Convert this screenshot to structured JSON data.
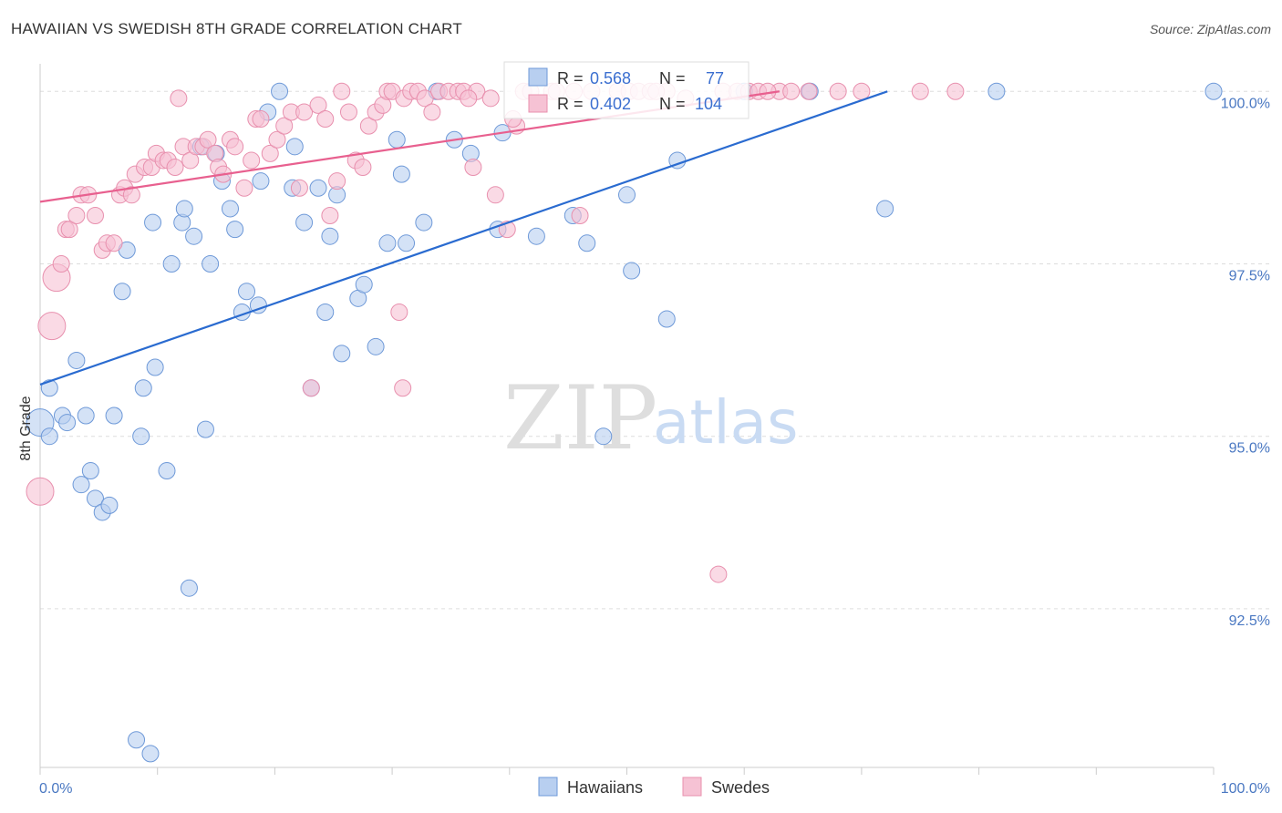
{
  "title": "HAWAIIAN VS SWEDISH 8TH GRADE CORRELATION CHART",
  "source": "Source: ZipAtlas.com",
  "watermark": {
    "left": "ZIP",
    "right": "atlas"
  },
  "colors": {
    "blue_fill": "#b8cff0",
    "blue_stroke": "#6e99d8",
    "blue_line": "#2a6bd0",
    "pink_fill": "#f6c2d4",
    "pink_stroke": "#e890ae",
    "pink_line": "#e8608f",
    "axis_text": "#4a78c2",
    "grid": "#dddddd"
  },
  "chart_data": {
    "type": "scatter",
    "xlabel": "",
    "ylabel": "8th Grade",
    "xlim": [
      0,
      100
    ],
    "ylim": [
      90.2,
      100.4
    ],
    "x_tick_labels": [
      "0.0%",
      "100.0%"
    ],
    "y_ticks": [
      92.5,
      95.0,
      97.5,
      100.0
    ],
    "y_tick_labels": [
      "92.5%",
      "95.0%",
      "97.5%",
      "100.0%"
    ],
    "grid": "dashed horizontal",
    "legend": {
      "placement": "top-center",
      "entries": [
        {
          "r_label": "R =",
          "r": "0.568",
          "n_label": "N =",
          "n": "77"
        },
        {
          "r_label": "R =",
          "r": "0.402",
          "n_label": "N =",
          "n": "104"
        }
      ]
    },
    "series": [
      {
        "name": "Hawaiians",
        "trend": {
          "x": [
            0,
            72.2
          ],
          "y": [
            95.75,
            100.0
          ]
        },
        "points": [
          [
            0.0,
            95.2,
            2
          ],
          [
            0.8,
            95.7,
            1
          ],
          [
            0.8,
            95.0,
            1
          ],
          [
            1.9,
            95.3,
            1
          ],
          [
            2.3,
            95.2,
            1
          ],
          [
            3.1,
            96.1,
            1
          ],
          [
            3.5,
            94.3,
            1
          ],
          [
            3.9,
            95.3,
            1
          ],
          [
            4.3,
            94.5,
            1
          ],
          [
            4.7,
            94.1,
            1
          ],
          [
            5.3,
            93.9,
            1
          ],
          [
            5.9,
            94.0,
            1
          ],
          [
            6.3,
            95.3,
            1
          ],
          [
            7.0,
            97.1,
            1
          ],
          [
            7.4,
            97.7,
            1
          ],
          [
            8.2,
            90.6,
            1
          ],
          [
            8.6,
            95.0,
            1
          ],
          [
            8.8,
            95.7,
            1
          ],
          [
            9.6,
            98.1,
            1
          ],
          [
            9.8,
            96.0,
            1
          ],
          [
            10.8,
            94.5,
            1
          ],
          [
            11.2,
            97.5,
            1
          ],
          [
            12.1,
            98.1,
            1
          ],
          [
            12.3,
            98.3,
            1
          ],
          [
            12.7,
            92.8,
            1
          ],
          [
            13.1,
            97.9,
            1
          ],
          [
            13.7,
            99.2,
            1
          ],
          [
            14.1,
            95.1,
            1
          ],
          [
            14.5,
            97.5,
            1
          ],
          [
            15.0,
            99.1,
            1
          ],
          [
            15.5,
            98.7,
            1
          ],
          [
            16.2,
            98.3,
            1
          ],
          [
            16.6,
            98.0,
            1
          ],
          [
            17.2,
            96.8,
            1
          ],
          [
            17.6,
            97.1,
            1
          ],
          [
            18.6,
            96.9,
            1
          ],
          [
            18.8,
            98.7,
            1
          ],
          [
            19.4,
            99.7,
            1
          ],
          [
            20.4,
            100.0,
            1
          ],
          [
            21.5,
            98.6,
            1
          ],
          [
            21.7,
            99.2,
            1
          ],
          [
            22.5,
            98.1,
            1
          ],
          [
            23.1,
            95.7,
            1
          ],
          [
            23.7,
            98.6,
            1
          ],
          [
            24.3,
            96.8,
            1
          ],
          [
            24.7,
            97.9,
            1
          ],
          [
            25.3,
            98.5,
            1
          ],
          [
            25.7,
            96.2,
            1
          ],
          [
            27.1,
            97.0,
            1
          ],
          [
            27.6,
            97.2,
            1
          ],
          [
            28.6,
            96.3,
            1
          ],
          [
            29.6,
            97.8,
            1
          ],
          [
            30.4,
            99.3,
            1
          ],
          [
            30.8,
            98.8,
            1
          ],
          [
            31.2,
            97.8,
            1
          ],
          [
            32.7,
            98.1,
            1
          ],
          [
            33.8,
            100.0,
            1
          ],
          [
            35.3,
            99.3,
            1
          ],
          [
            36.7,
            99.1,
            1
          ],
          [
            39.0,
            98.0,
            1
          ],
          [
            39.4,
            99.4,
            1
          ],
          [
            42.3,
            97.9,
            1
          ],
          [
            45.4,
            98.2,
            1
          ],
          [
            46.6,
            97.8,
            1
          ],
          [
            48.0,
            95.0,
            1
          ],
          [
            50.0,
            98.5,
            1
          ],
          [
            50.4,
            97.4,
            1
          ],
          [
            53.4,
            96.7,
            1
          ],
          [
            54.3,
            99.0,
            1
          ],
          [
            60.0,
            100.0,
            1
          ],
          [
            65.6,
            100.0,
            1
          ],
          [
            72.0,
            98.3,
            1
          ],
          [
            81.5,
            100.0,
            1
          ],
          [
            100.0,
            100.0,
            1
          ],
          [
            9.4,
            90.4,
            1
          ]
        ]
      },
      {
        "name": "Swedes",
        "trend": {
          "x": [
            0,
            63.0
          ],
          "y": [
            98.4,
            100.0
          ]
        },
        "points": [
          [
            0.0,
            94.2,
            2
          ],
          [
            1.0,
            96.6,
            2
          ],
          [
            1.4,
            97.3,
            2
          ],
          [
            1.8,
            97.5,
            1
          ],
          [
            2.2,
            98.0,
            1
          ],
          [
            2.5,
            98.0,
            1
          ],
          [
            3.1,
            98.2,
            1
          ],
          [
            3.5,
            98.5,
            1
          ],
          [
            4.1,
            98.5,
            1
          ],
          [
            4.7,
            98.2,
            1
          ],
          [
            5.3,
            97.7,
            1
          ],
          [
            5.7,
            97.8,
            1
          ],
          [
            6.3,
            97.8,
            1
          ],
          [
            6.8,
            98.5,
            1
          ],
          [
            7.2,
            98.6,
            1
          ],
          [
            7.8,
            98.5,
            1
          ],
          [
            8.1,
            98.8,
            1
          ],
          [
            8.9,
            98.9,
            1
          ],
          [
            9.5,
            98.9,
            1
          ],
          [
            9.9,
            99.1,
            1
          ],
          [
            10.5,
            99.0,
            1
          ],
          [
            10.9,
            99.0,
            1
          ],
          [
            11.5,
            98.9,
            1
          ],
          [
            12.2,
            99.2,
            1
          ],
          [
            12.8,
            99.0,
            1
          ],
          [
            13.3,
            99.2,
            1
          ],
          [
            13.9,
            99.2,
            1
          ],
          [
            14.3,
            99.3,
            1
          ],
          [
            14.9,
            99.1,
            1
          ],
          [
            15.2,
            98.9,
            1
          ],
          [
            15.6,
            98.8,
            1
          ],
          [
            16.2,
            99.3,
            1
          ],
          [
            16.6,
            99.2,
            1
          ],
          [
            17.4,
            98.6,
            1
          ],
          [
            18.0,
            99.0,
            1
          ],
          [
            18.4,
            99.6,
            1
          ],
          [
            18.8,
            99.6,
            1
          ],
          [
            19.6,
            99.1,
            1
          ],
          [
            20.2,
            99.3,
            1
          ],
          [
            20.8,
            99.5,
            1
          ],
          [
            21.4,
            99.7,
            1
          ],
          [
            22.1,
            98.6,
            1
          ],
          [
            22.5,
            99.7,
            1
          ],
          [
            23.1,
            95.7,
            1
          ],
          [
            23.7,
            99.8,
            1
          ],
          [
            24.3,
            99.6,
            1
          ],
          [
            24.7,
            98.2,
            1
          ],
          [
            25.3,
            98.7,
            1
          ],
          [
            25.7,
            100.0,
            1
          ],
          [
            26.3,
            99.7,
            1
          ],
          [
            26.9,
            99.0,
            1
          ],
          [
            27.5,
            98.9,
            1
          ],
          [
            28.0,
            99.5,
            1
          ],
          [
            28.6,
            99.7,
            1
          ],
          [
            29.2,
            99.8,
            1
          ],
          [
            29.6,
            100.0,
            1
          ],
          [
            30.0,
            100.0,
            1
          ],
          [
            30.6,
            96.8,
            1
          ],
          [
            31.0,
            99.9,
            1
          ],
          [
            31.6,
            100.0,
            1
          ],
          [
            32.2,
            100.0,
            1
          ],
          [
            32.8,
            99.9,
            1
          ],
          [
            33.4,
            99.7,
            1
          ],
          [
            34.0,
            100.0,
            1
          ],
          [
            34.8,
            100.0,
            1
          ],
          [
            35.6,
            100.0,
            1
          ],
          [
            36.1,
            100.0,
            1
          ],
          [
            36.9,
            98.9,
            1
          ],
          [
            37.2,
            100.0,
            1
          ],
          [
            38.4,
            99.9,
            1
          ],
          [
            38.8,
            98.5,
            1
          ],
          [
            39.8,
            98.0,
            1
          ],
          [
            40.6,
            99.5,
            1
          ],
          [
            41.2,
            100.0,
            1
          ],
          [
            41.8,
            100.0,
            1
          ],
          [
            43.6,
            100.0,
            1
          ],
          [
            46.0,
            98.2,
            1
          ],
          [
            49.2,
            100.0,
            1
          ],
          [
            50.2,
            100.0,
            1
          ],
          [
            51.0,
            100.0,
            1
          ],
          [
            52.0,
            100.0,
            1
          ],
          [
            53.4,
            100.0,
            1
          ],
          [
            55.0,
            99.9,
            1
          ],
          [
            58.2,
            100.0,
            1
          ],
          [
            59.4,
            100.0,
            1
          ],
          [
            60.4,
            100.0,
            1
          ],
          [
            61.2,
            100.0,
            1
          ],
          [
            63.0,
            100.0,
            1
          ],
          [
            65.5,
            100.0,
            1
          ],
          [
            70.0,
            100.0,
            1
          ],
          [
            75.0,
            100.0,
            1
          ],
          [
            78.0,
            100.0,
            1
          ],
          [
            30.9,
            95.7,
            1
          ],
          [
            57.8,
            93.0,
            1
          ],
          [
            11.8,
            99.9,
            1
          ],
          [
            44.0,
            100.0,
            1
          ],
          [
            47.0,
            100.0,
            1
          ],
          [
            62.0,
            100.0,
            1
          ],
          [
            64.0,
            100.0,
            1
          ],
          [
            68.0,
            100.0,
            1
          ],
          [
            36.5,
            99.9,
            1
          ],
          [
            40.3,
            99.6,
            1
          ],
          [
            45.5,
            100.0,
            1
          ],
          [
            52.5,
            100.0,
            1
          ]
        ]
      }
    ]
  }
}
